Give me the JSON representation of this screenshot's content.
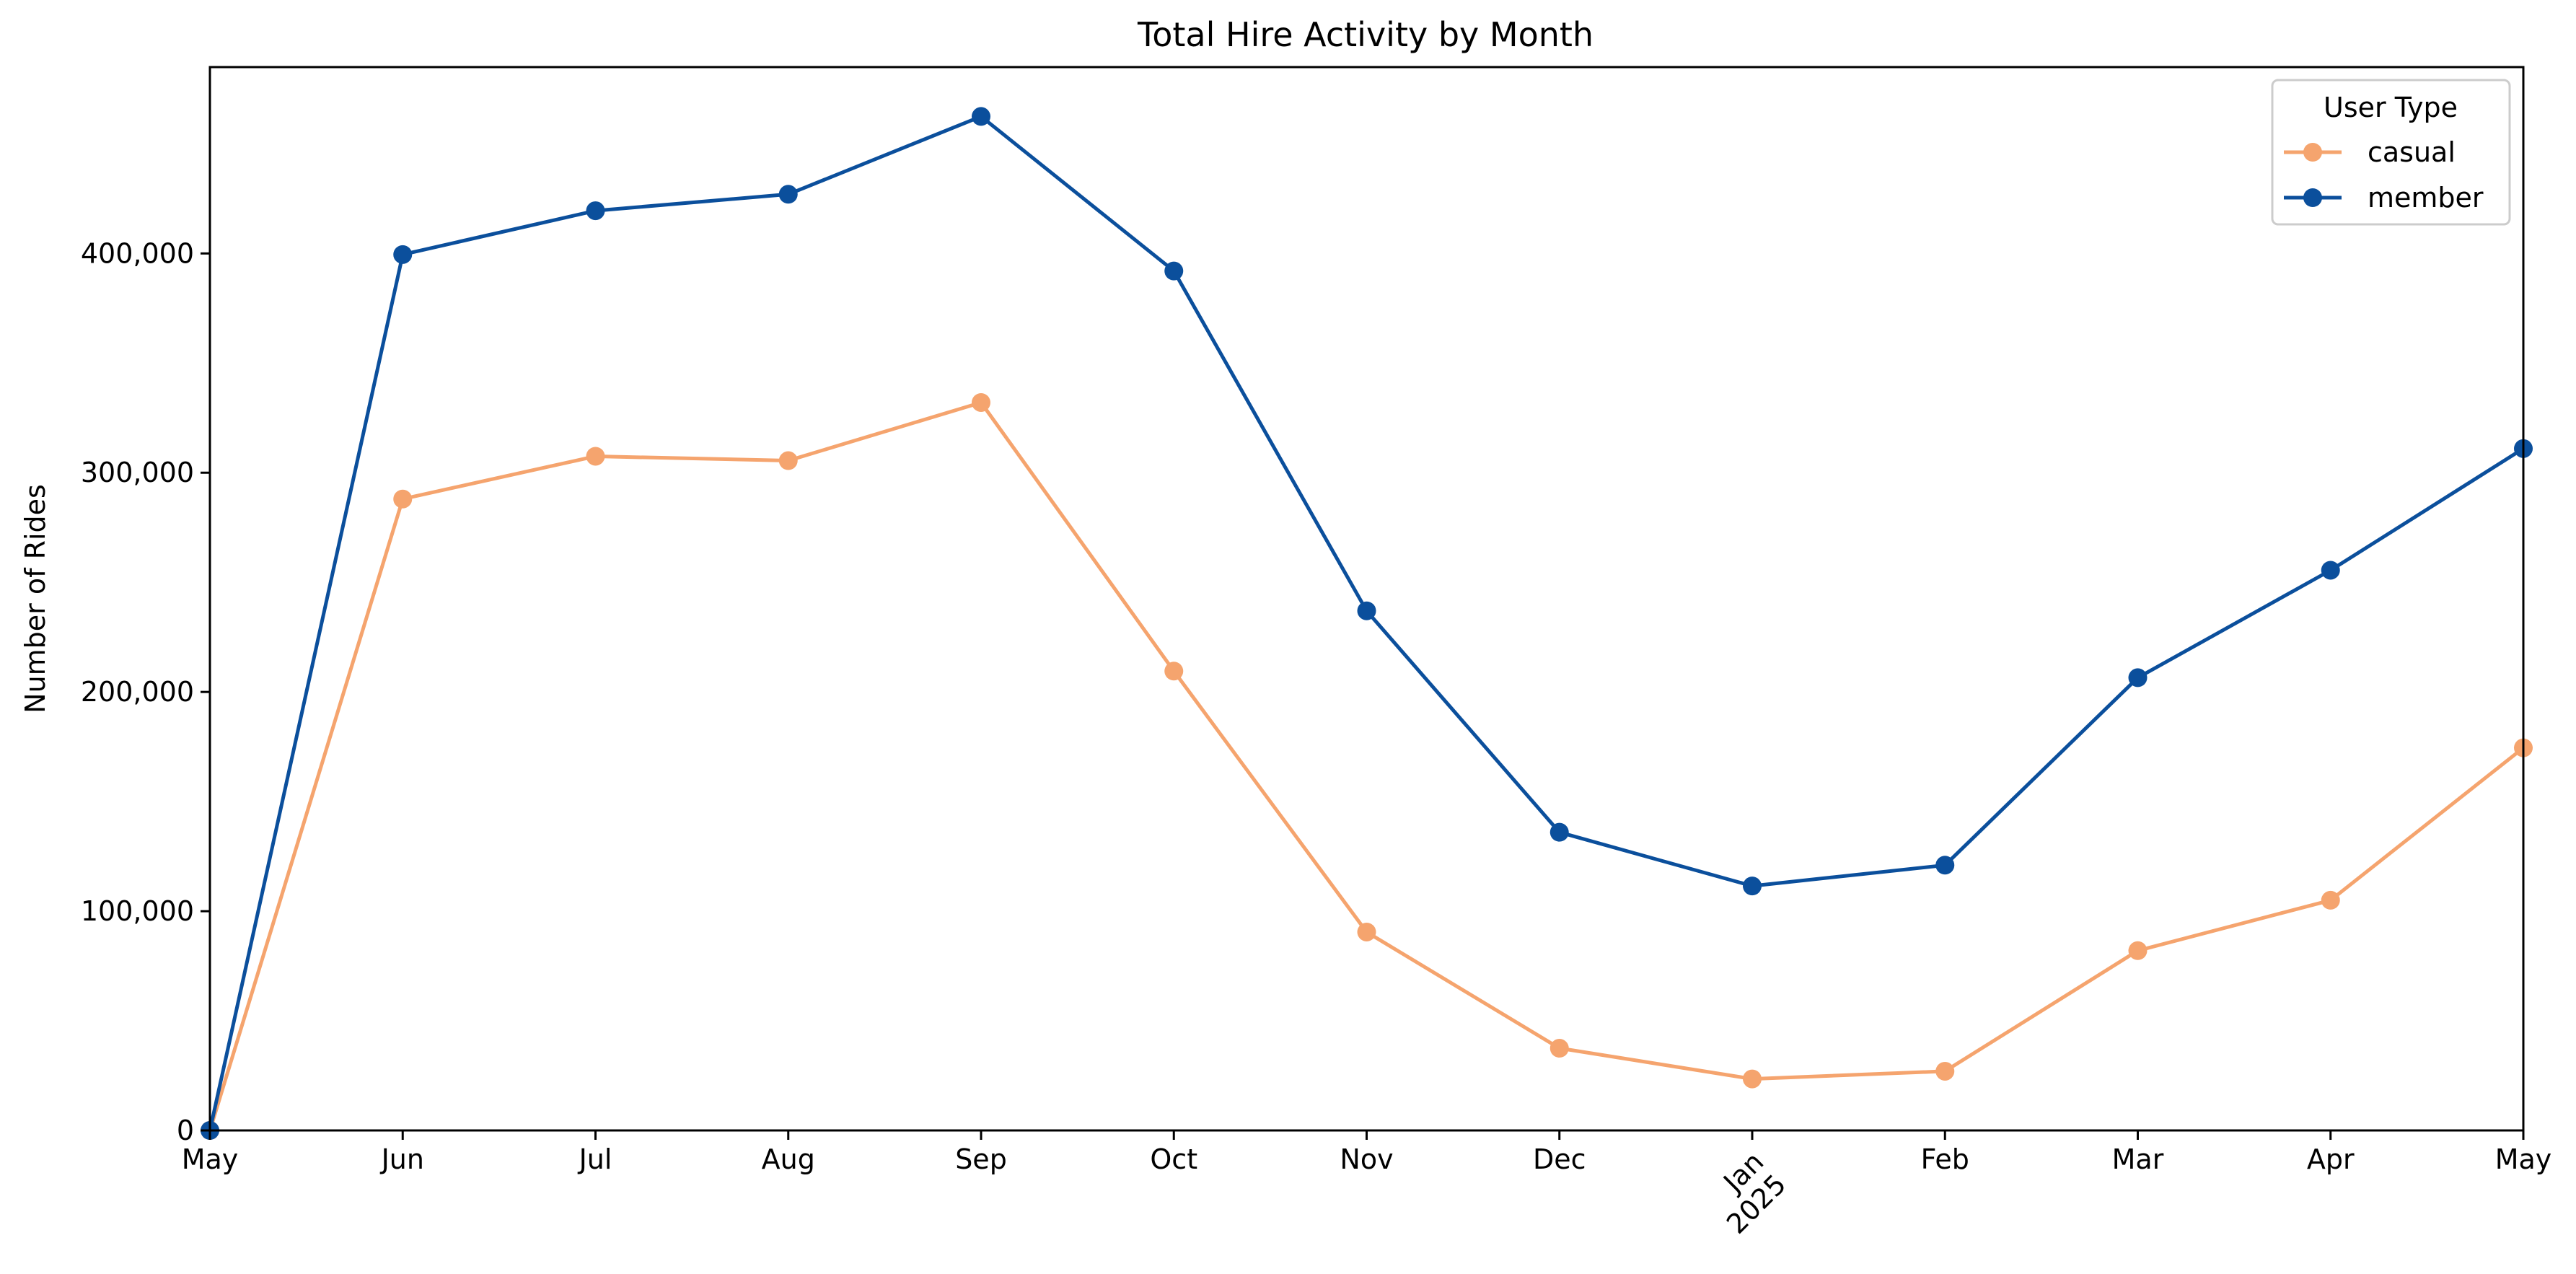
{
  "chart_data": {
    "type": "line",
    "title": "Total Hire Activity by Month",
    "xlabel": "",
    "ylabel": "Number of Rides",
    "x": [
      "May",
      "Jun",
      "Jul",
      "Aug",
      "Sep",
      "Oct",
      "Nov",
      "Dec",
      "Jan\n2025",
      "Feb",
      "Mar",
      "Apr",
      "May"
    ],
    "xlim": [
      0,
      12
    ],
    "ylim": [
      0,
      485000
    ],
    "yticks": [
      0,
      100000,
      200000,
      300000,
      400000
    ],
    "ytick_labels": [
      "0",
      "100,000",
      "200,000",
      "300,000",
      "400,000"
    ],
    "grid": false,
    "legend": {
      "title": "User Type",
      "position": "top-right"
    },
    "series": [
      {
        "name": "casual",
        "color": "#F5A46E",
        "values": [
          0,
          288000,
          307500,
          305500,
          332000,
          209500,
          90500,
          37500,
          23500,
          27000,
          82000,
          105000,
          174500
        ]
      },
      {
        "name": "member",
        "color": "#0B4F9C",
        "values": [
          0,
          399500,
          419500,
          427000,
          462500,
          392000,
          237000,
          136000,
          111500,
          121000,
          206500,
          255500,
          311000
        ]
      }
    ]
  }
}
